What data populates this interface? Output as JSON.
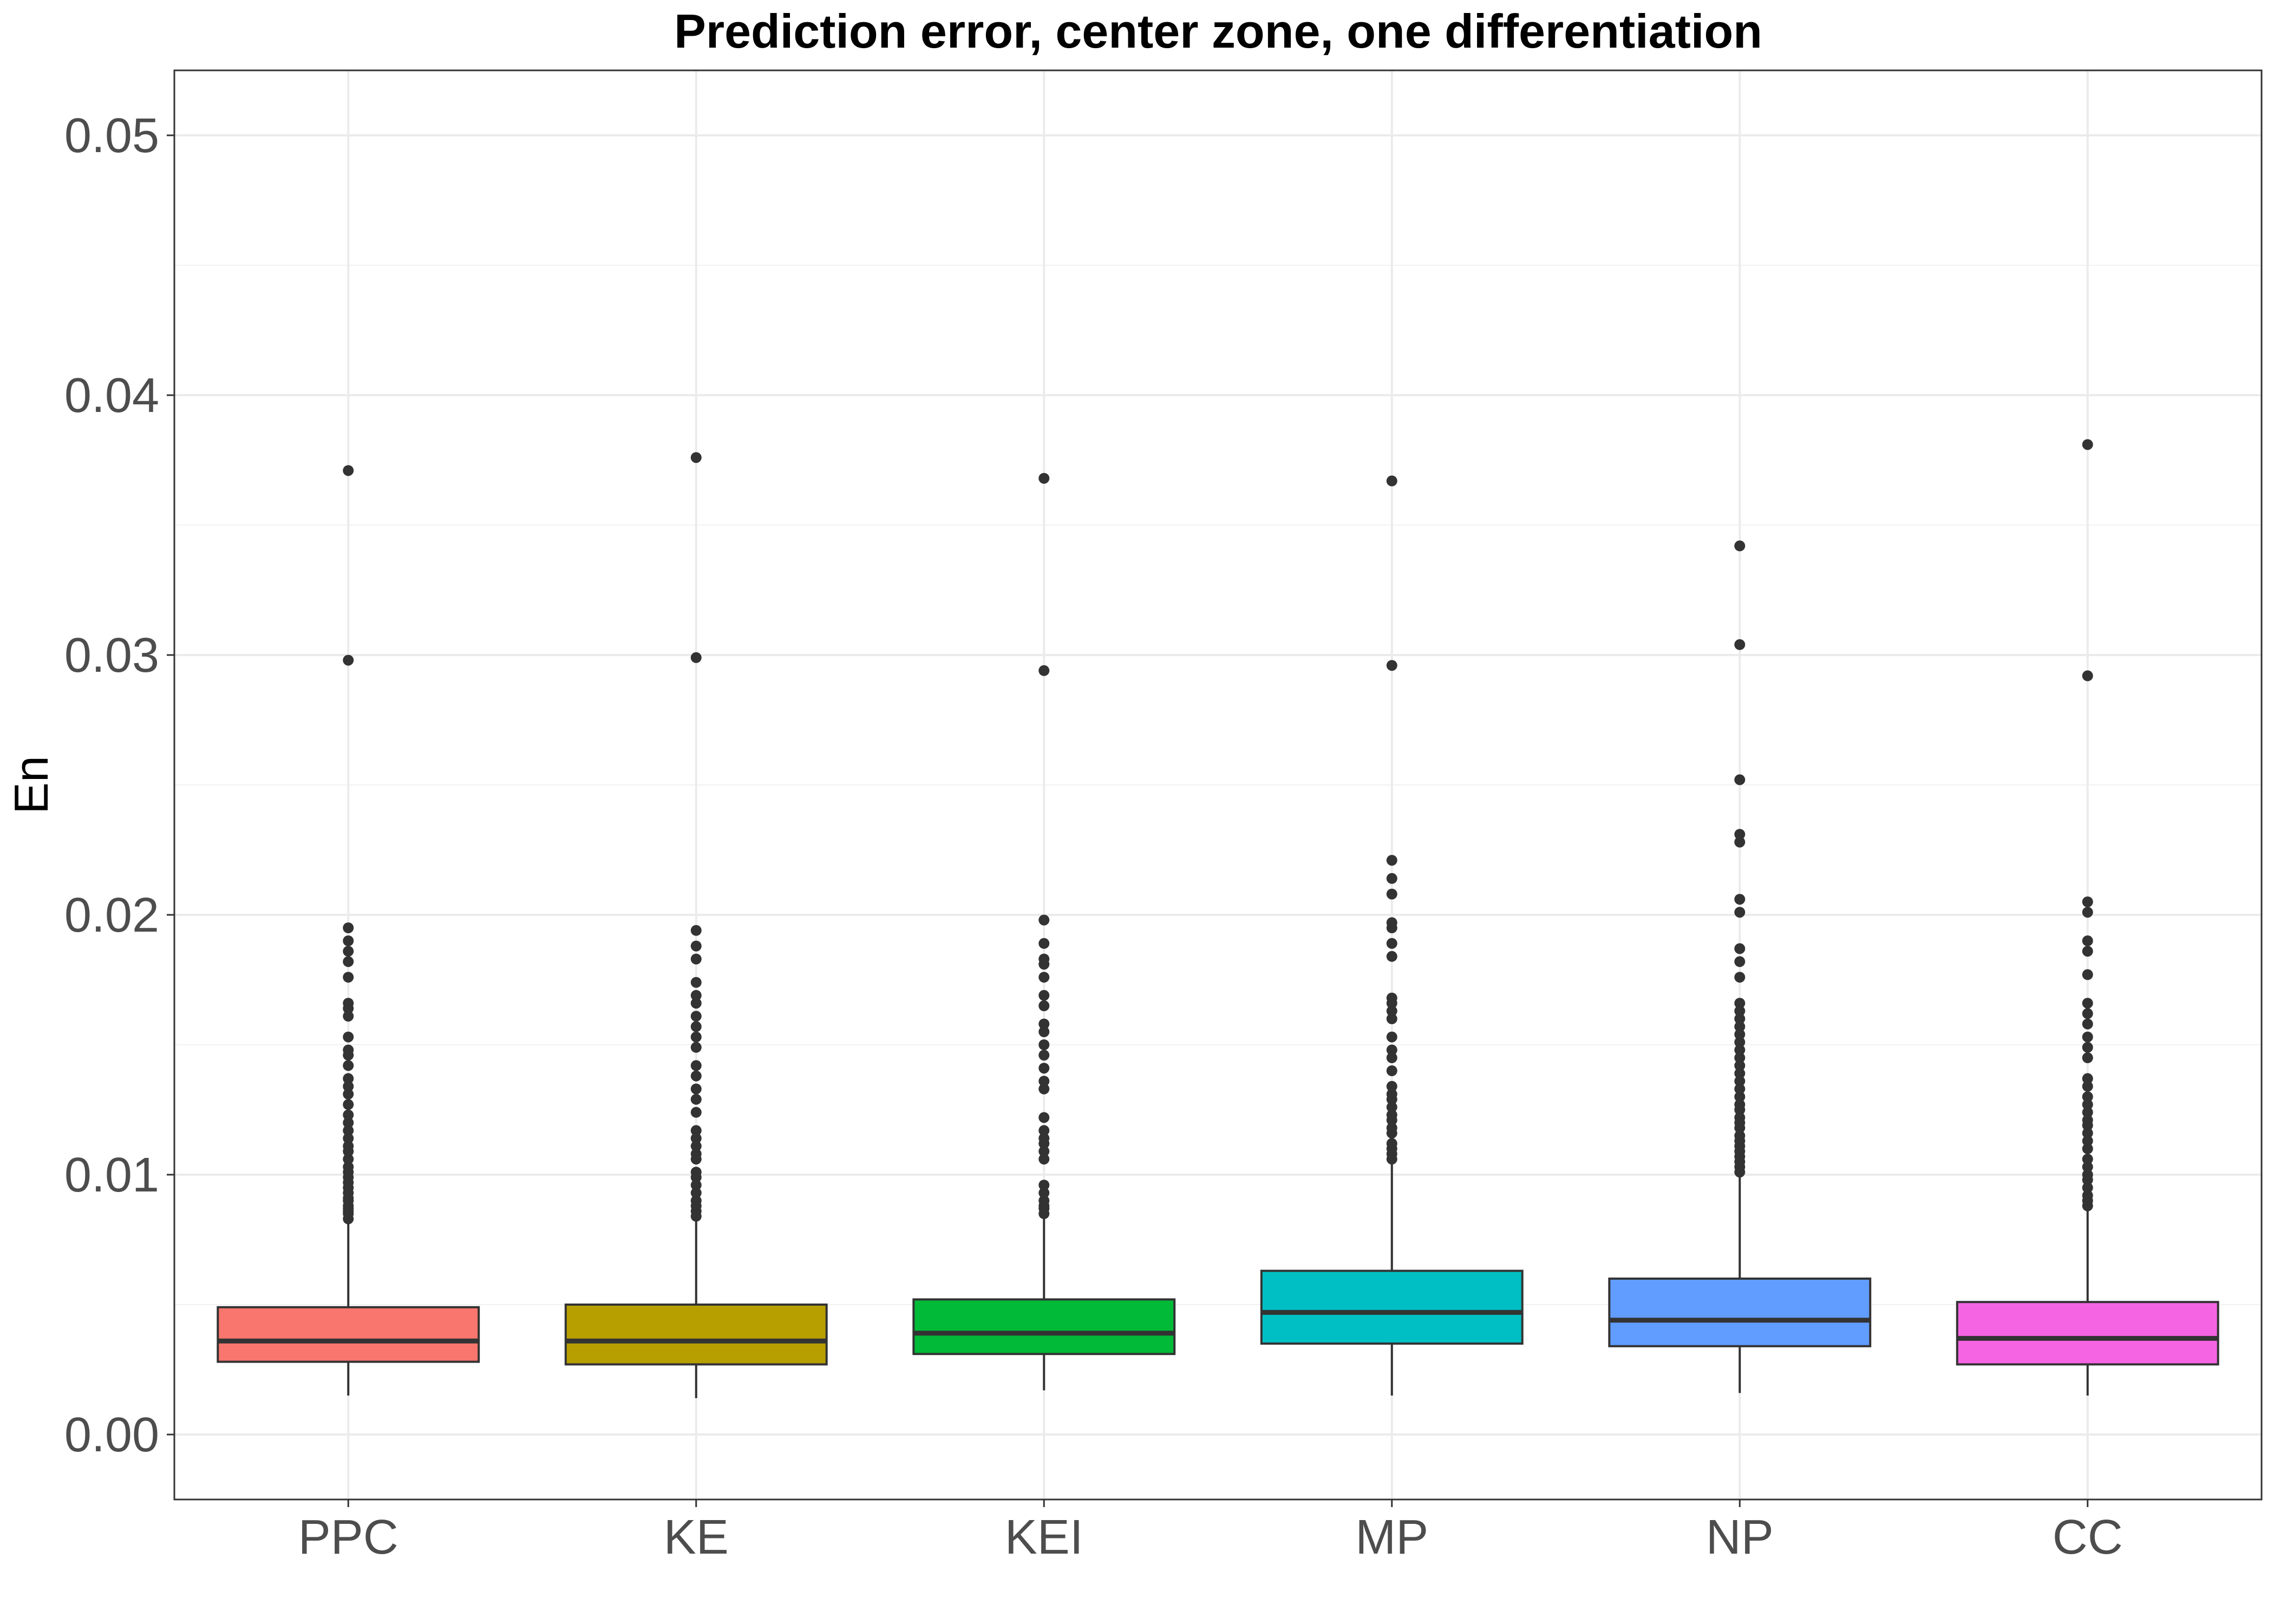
{
  "chart_data": {
    "type": "boxplot",
    "title": "Prediction error, center zone, one differentiation",
    "xlabel": "",
    "ylabel": "En",
    "ylim": [
      -0.0025,
      0.0525
    ],
    "yticks": [
      "0.00",
      "0.01",
      "0.02",
      "0.03",
      "0.04",
      "0.05"
    ],
    "ytick_values": [
      0,
      0.01,
      0.02,
      0.03,
      0.04,
      0.05
    ],
    "grid": true,
    "legend": "none",
    "categories": [
      "PPC",
      "KE",
      "KEI",
      "MP",
      "NP",
      "CC"
    ],
    "boxes": [
      {
        "name": "PPC",
        "color": "#F8766D",
        "whisker_low": 0.0015,
        "q1": 0.0028,
        "median": 0.0036,
        "q3": 0.0049,
        "whisker_high": 0.0081,
        "outliers": [
          0.0083,
          0.0085,
          0.0086,
          0.0087,
          0.0088,
          0.009,
          0.0091,
          0.0093,
          0.0095,
          0.0097,
          0.0099,
          0.0101,
          0.0103,
          0.0106,
          0.0109,
          0.0111,
          0.0114,
          0.0117,
          0.012,
          0.0123,
          0.0127,
          0.0131,
          0.0134,
          0.0137,
          0.0142,
          0.0146,
          0.0148,
          0.0153,
          0.0161,
          0.0164,
          0.0166,
          0.0176,
          0.0182,
          0.0186,
          0.019,
          0.0195,
          0.0298,
          0.0371
        ]
      },
      {
        "name": "KE",
        "color": "#B79F00",
        "whisker_low": 0.0014,
        "q1": 0.0027,
        "median": 0.0036,
        "q3": 0.005,
        "whisker_high": 0.0082,
        "outliers": [
          0.0084,
          0.0086,
          0.0088,
          0.009,
          0.0093,
          0.0096,
          0.0099,
          0.0101,
          0.0106,
          0.0108,
          0.0111,
          0.0114,
          0.0117,
          0.0124,
          0.0129,
          0.0133,
          0.0138,
          0.0142,
          0.0149,
          0.0153,
          0.0157,
          0.0161,
          0.0166,
          0.0169,
          0.0174,
          0.0183,
          0.0188,
          0.0194,
          0.0299,
          0.0376
        ]
      },
      {
        "name": "KEI",
        "color": "#00BA38",
        "whisker_low": 0.0017,
        "q1": 0.0031,
        "median": 0.0039,
        "q3": 0.0052,
        "whisker_high": 0.0084,
        "outliers": [
          0.0085,
          0.0087,
          0.0088,
          0.009,
          0.0093,
          0.0096,
          0.0106,
          0.0109,
          0.0112,
          0.0114,
          0.0117,
          0.0122,
          0.0133,
          0.0136,
          0.0141,
          0.0146,
          0.015,
          0.0155,
          0.0158,
          0.0165,
          0.0169,
          0.0176,
          0.0181,
          0.0183,
          0.0189,
          0.0198,
          0.0294,
          0.0368
        ]
      },
      {
        "name": "MP",
        "color": "#00BFC4",
        "whisker_low": 0.0015,
        "q1": 0.0035,
        "median": 0.0047,
        "q3": 0.0063,
        "whisker_high": 0.0104,
        "outliers": [
          0.0106,
          0.0108,
          0.011,
          0.0112,
          0.0116,
          0.0118,
          0.0121,
          0.0123,
          0.0126,
          0.0129,
          0.0131,
          0.0134,
          0.014,
          0.0145,
          0.0148,
          0.0153,
          0.016,
          0.0163,
          0.0166,
          0.0168,
          0.0184,
          0.0189,
          0.0195,
          0.0197,
          0.0208,
          0.0214,
          0.0221,
          0.0296,
          0.0367
        ]
      },
      {
        "name": "NP",
        "color": "#619CFF",
        "whisker_low": 0.0016,
        "q1": 0.0034,
        "median": 0.0044,
        "q3": 0.006,
        "whisker_high": 0.0099,
        "outliers": [
          0.0101,
          0.0103,
          0.0105,
          0.0107,
          0.0109,
          0.0111,
          0.0113,
          0.0115,
          0.0118,
          0.012,
          0.0122,
          0.0125,
          0.0127,
          0.013,
          0.0133,
          0.0136,
          0.0139,
          0.0142,
          0.0145,
          0.0148,
          0.0151,
          0.0154,
          0.0157,
          0.016,
          0.0163,
          0.0166,
          0.0176,
          0.0182,
          0.0187,
          0.0201,
          0.0206,
          0.0228,
          0.0231,
          0.0252,
          0.0304,
          0.0342
        ]
      },
      {
        "name": "CC",
        "color": "#F564E3",
        "whisker_low": 0.0015,
        "q1": 0.0027,
        "median": 0.0037,
        "q3": 0.0051,
        "whisker_high": 0.0086,
        "outliers": [
          0.0088,
          0.009,
          0.0092,
          0.0095,
          0.0098,
          0.01,
          0.0103,
          0.0106,
          0.011,
          0.0113,
          0.0116,
          0.0119,
          0.0121,
          0.0124,
          0.0127,
          0.013,
          0.0134,
          0.0137,
          0.0145,
          0.0149,
          0.0153,
          0.0158,
          0.0162,
          0.0166,
          0.0177,
          0.0186,
          0.019,
          0.0201,
          0.0205,
          0.0292,
          0.0381
        ]
      }
    ]
  }
}
